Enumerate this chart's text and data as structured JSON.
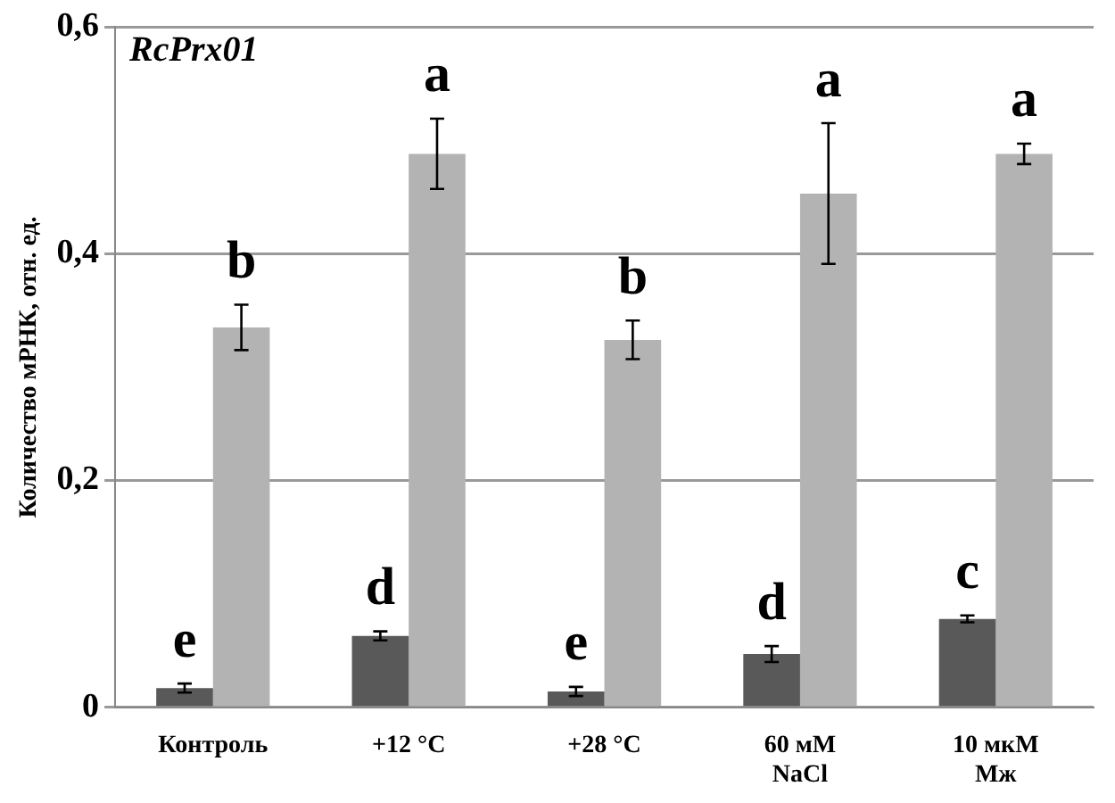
{
  "chart_data": {
    "type": "bar",
    "title": "RcPrx01",
    "ylabel": "Количество мРНК, отн. ед.",
    "categories": [
      "Контроль",
      "+12 °C",
      "+28 °C",
      "60 мМ\nNaCl",
      "10 мкМ\nМж"
    ],
    "series": [
      {
        "color": "#595959",
        "values": [
          0.017,
          0.063,
          0.014,
          0.047,
          0.078
        ],
        "errors": [
          0.004,
          0.004,
          0.004,
          0.007,
          0.003
        ]
      },
      {
        "color": "#b3b3b3",
        "values": [
          0.335,
          0.488,
          0.324,
          0.453,
          0.488
        ],
        "errors": [
          0.02,
          0.031,
          0.017,
          0.062,
          0.009
        ]
      }
    ],
    "ylim": [
      0,
      0.6
    ],
    "yticks": [
      {
        "value": 0,
        "label": "0"
      },
      {
        "value": 0.2,
        "label": "0,2"
      },
      {
        "value": 0.4,
        "label": "0,4"
      },
      {
        "value": 0.6,
        "label": "0,6"
      }
    ],
    "grid": "y",
    "legend": false,
    "annotations": [
      {
        "text": "e",
        "x": "Контроль",
        "y": 0.017
      },
      {
        "text": "b",
        "x": "Контроль",
        "y": 0.335
      },
      {
        "text": "d",
        "x": "+12 °C",
        "y": 0.063
      },
      {
        "text": "a",
        "x": "+12 °C",
        "y": 0.488
      },
      {
        "text": "e",
        "x": "+28 °C",
        "y": 0.014
      },
      {
        "text": "b",
        "x": "+28 °C",
        "y": 0.324
      },
      {
        "text": "d",
        "x": "60 мМ\nNaCl",
        "y": 0.047
      },
      {
        "text": "a",
        "x": "60 мМ\nNaCl",
        "y": 0.453
      },
      {
        "text": "c",
        "x": "10 мкМ\nМж",
        "y": 0.078
      },
      {
        "text": "a",
        "x": "10 мкМ\nМж",
        "y": 0.488
      }
    ]
  }
}
